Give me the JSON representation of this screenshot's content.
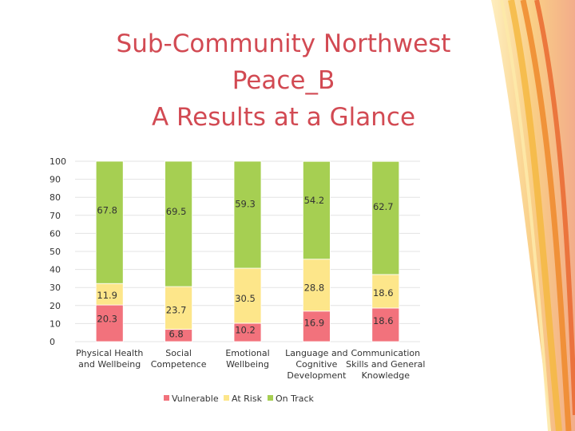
{
  "title": {
    "line1": "Sub-Community Northwest",
    "line2": "Peace_B",
    "line3": "A Results at a Glance"
  },
  "colors": {
    "title": "#d24a53",
    "vulnerable": "#f2727c",
    "at_risk": "#fde68a",
    "on_track": "#a6cf52"
  },
  "chart_data": {
    "type": "bar",
    "stacked": true,
    "categories": [
      [
        "Physical Health",
        "and Wellbeing"
      ],
      [
        "Social",
        "Competence"
      ],
      [
        "Emotional",
        "Wellbeing"
      ],
      [
        "Language and",
        "Cognitive",
        "Development"
      ],
      [
        "Communication",
        "Skills and General",
        "Knowledge"
      ]
    ],
    "series": [
      {
        "name": "Vulnerable",
        "values": [
          20.3,
          6.8,
          10.2,
          16.9,
          18.6
        ]
      },
      {
        "name": "At Risk",
        "values": [
          11.9,
          23.7,
          30.5,
          28.8,
          18.6
        ]
      },
      {
        "name": "On Track",
        "values": [
          67.8,
          69.5,
          59.3,
          54.2,
          62.7
        ]
      }
    ],
    "ylim": [
      0,
      100
    ],
    "yticks": [
      0,
      10,
      20,
      30,
      40,
      50,
      60,
      70,
      80,
      90,
      100
    ],
    "grid": true,
    "legend": "bottom"
  }
}
